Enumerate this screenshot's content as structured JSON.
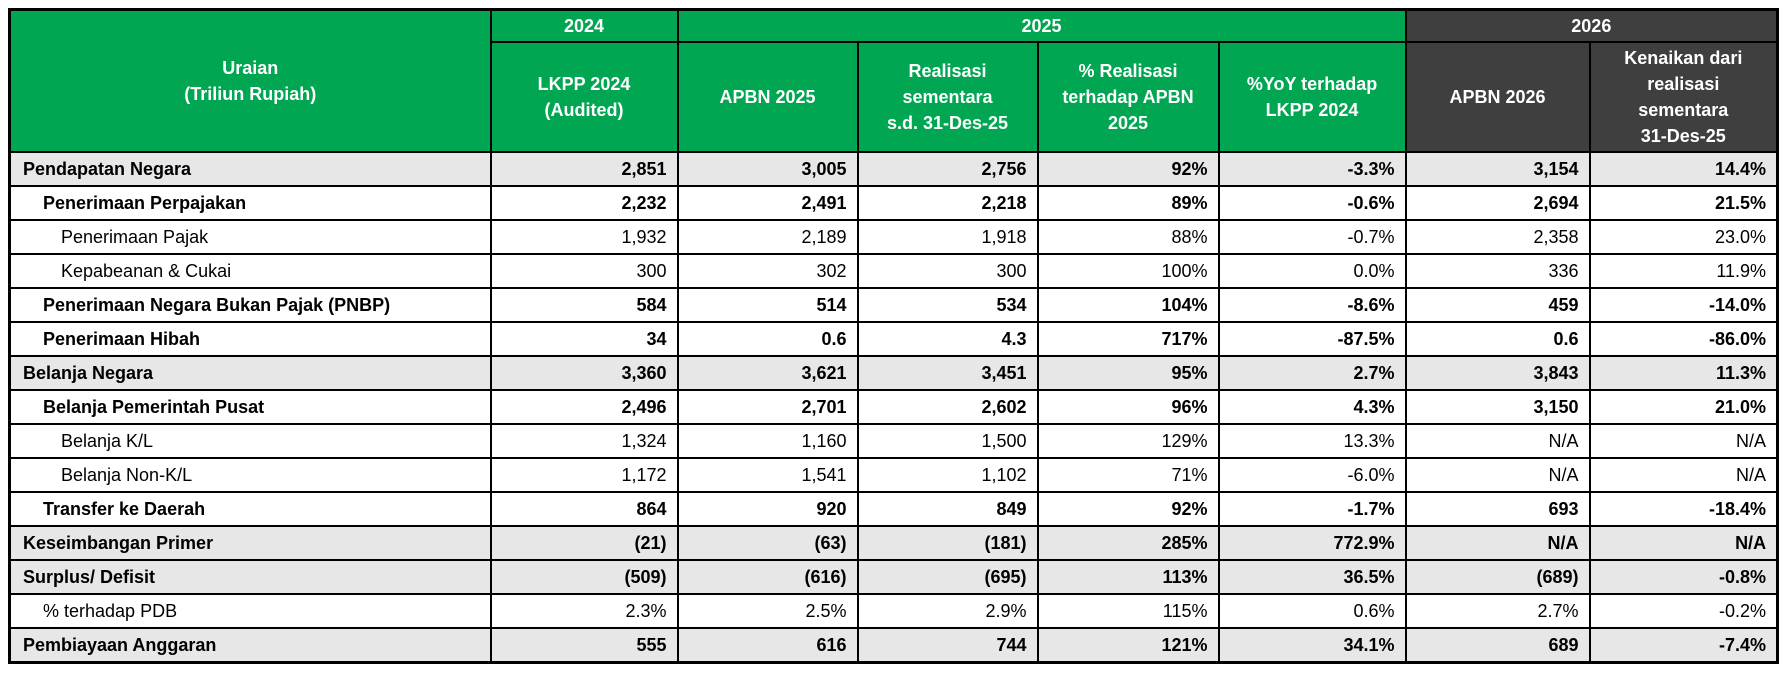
{
  "colors": {
    "header_green": "#00A651",
    "header_dark": "#3F3F3F",
    "shaded_row": "#E7E7E7",
    "border": "#000000",
    "header_text": "#FFFFFF",
    "body_text": "#000000"
  },
  "table": {
    "corner_header": "Uraian\n(Triliun Rupiah)",
    "year_groups": [
      {
        "label": "2024",
        "span": 1,
        "theme": "green"
      },
      {
        "label": "2025",
        "span": 4,
        "theme": "green"
      },
      {
        "label": "2026",
        "span": 2,
        "theme": "dark"
      }
    ],
    "columns": [
      {
        "label": "LKPP 2024\n(Audited)",
        "theme": "green"
      },
      {
        "label": "APBN 2025",
        "theme": "green"
      },
      {
        "label": "Realisasi\nsementara\ns.d. 31-Des-25",
        "theme": "green"
      },
      {
        "label": "% Realisasi\nterhadap APBN\n2025",
        "theme": "green"
      },
      {
        "label": "%YoY terhadap\nLKPP 2024",
        "theme": "green"
      },
      {
        "label": "APBN 2026",
        "theme": "dark"
      },
      {
        "label": "Kenaikan dari\nrealisasi\nsementara\n31-Des-25",
        "theme": "dark"
      }
    ],
    "rows": [
      {
        "label": "Pendapatan Negara",
        "indent": 0,
        "bold": true,
        "shaded": true,
        "values": [
          "2,851",
          "3,005",
          "2,756",
          "92%",
          "-3.3%",
          "3,154",
          "14.4%"
        ]
      },
      {
        "label": "Penerimaan Perpajakan",
        "indent": 1,
        "bold": true,
        "shaded": false,
        "values": [
          "2,232",
          "2,491",
          "2,218",
          "89%",
          "-0.6%",
          "2,694",
          "21.5%"
        ]
      },
      {
        "label": "Penerimaan Pajak",
        "indent": 2,
        "bold": false,
        "shaded": false,
        "values": [
          "1,932",
          "2,189",
          "1,918",
          "88%",
          "-0.7%",
          "2,358",
          "23.0%"
        ]
      },
      {
        "label": "Kepabeanan & Cukai",
        "indent": 2,
        "bold": false,
        "shaded": false,
        "values": [
          "300",
          "302",
          "300",
          "100%",
          "0.0%",
          "336",
          "11.9%"
        ]
      },
      {
        "label": "Penerimaan Negara Bukan Pajak (PNBP)",
        "indent": 1,
        "bold": true,
        "shaded": false,
        "values": [
          "584",
          "514",
          "534",
          "104%",
          "-8.6%",
          "459",
          "-14.0%"
        ]
      },
      {
        "label": "Penerimaan Hibah",
        "indent": 1,
        "bold": true,
        "shaded": false,
        "values": [
          "34",
          "0.6",
          "4.3",
          "717%",
          "-87.5%",
          "0.6",
          "-86.0%"
        ]
      },
      {
        "label": "Belanja Negara",
        "indent": 0,
        "bold": true,
        "shaded": true,
        "values": [
          "3,360",
          "3,621",
          "3,451",
          "95%",
          "2.7%",
          "3,843",
          "11.3%"
        ]
      },
      {
        "label": "Belanja Pemerintah Pusat",
        "indent": 1,
        "bold": true,
        "shaded": false,
        "values": [
          "2,496",
          "2,701",
          "2,602",
          "96%",
          "4.3%",
          "3,150",
          "21.0%"
        ]
      },
      {
        "label": "Belanja K/L",
        "indent": 2,
        "bold": false,
        "shaded": false,
        "values": [
          "1,324",
          "1,160",
          "1,500",
          "129%",
          "13.3%",
          "N/A",
          "N/A"
        ]
      },
      {
        "label": "Belanja Non-K/L",
        "indent": 2,
        "bold": false,
        "shaded": false,
        "values": [
          "1,172",
          "1,541",
          "1,102",
          "71%",
          "-6.0%",
          "N/A",
          "N/A"
        ]
      },
      {
        "label": "Transfer ke Daerah",
        "indent": 1,
        "bold": true,
        "shaded": false,
        "values": [
          "864",
          "920",
          "849",
          "92%",
          "-1.7%",
          "693",
          "-18.4%"
        ]
      },
      {
        "label": "Keseimbangan Primer",
        "indent": 0,
        "bold": true,
        "shaded": true,
        "values": [
          "(21)",
          "(63)",
          "(181)",
          "285%",
          "772.9%",
          "N/A",
          "N/A"
        ]
      },
      {
        "label": "Surplus/ Defisit",
        "indent": 0,
        "bold": true,
        "shaded": true,
        "values": [
          "(509)",
          "(616)",
          "(695)",
          "113%",
          "36.5%",
          "(689)",
          "-0.8%"
        ]
      },
      {
        "label": "% terhadap PDB",
        "indent": 1,
        "bold": false,
        "shaded": false,
        "values": [
          "2.3%",
          "2.5%",
          "2.9%",
          "115%",
          "0.6%",
          "2.7%",
          "-0.2%"
        ]
      },
      {
        "label": "Pembiayaan Anggaran",
        "indent": 0,
        "bold": true,
        "shaded": true,
        "values": [
          "555",
          "616",
          "744",
          "121%",
          "34.1%",
          "689",
          "-7.4%"
        ]
      }
    ]
  }
}
